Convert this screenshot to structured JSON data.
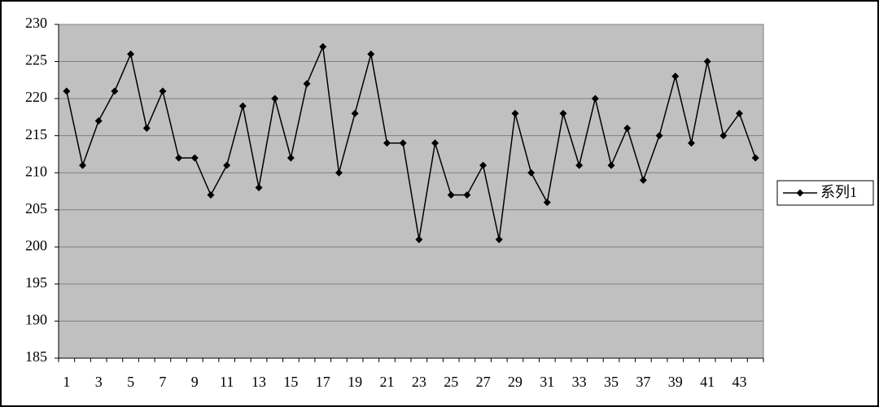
{
  "chart_data": {
    "type": "line",
    "categories": [
      "1",
      null,
      "3",
      null,
      "5",
      null,
      "7",
      null,
      "9",
      null,
      "11",
      null,
      "13",
      null,
      "15",
      null,
      "17",
      null,
      "19",
      null,
      "21",
      null,
      "23",
      null,
      "25",
      null,
      "27",
      null,
      "29",
      null,
      "31",
      null,
      "33",
      null,
      "35",
      null,
      "37",
      null,
      "39",
      null,
      "41",
      null,
      "43",
      null
    ],
    "series": [
      {
        "name": "系列1",
        "color": "#000000",
        "values": [
          221,
          211,
          217,
          221,
          226,
          216,
          221,
          212,
          212,
          207,
          211,
          219,
          208,
          220,
          212,
          222,
          227,
          210,
          218,
          226,
          214,
          214,
          201,
          214,
          207,
          207,
          211,
          201,
          218,
          210,
          206,
          218,
          211,
          220,
          211,
          216,
          209,
          215,
          223,
          214,
          225,
          215,
          218,
          212
        ]
      }
    ],
    "ylim": [
      185,
      230
    ],
    "yticks": [
      185,
      190,
      195,
      200,
      205,
      210,
      215,
      220,
      225,
      230
    ],
    "grid": true,
    "legend": "right",
    "plot_background": "#c0c0c0"
  }
}
